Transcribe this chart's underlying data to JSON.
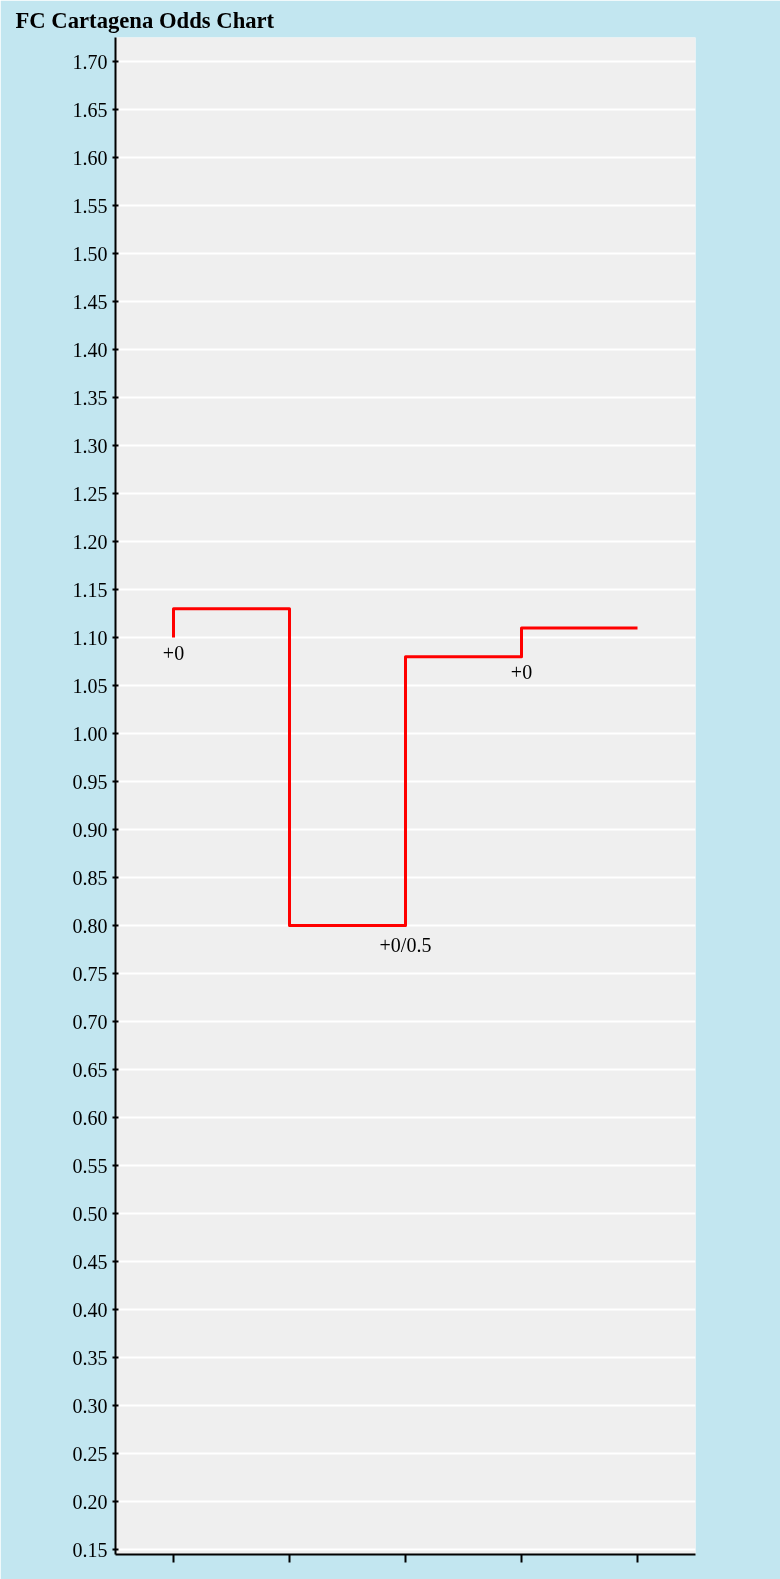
{
  "chart_data": {
    "type": "step",
    "title": "FC Cartagena Odds Chart",
    "categories": [
      null,
      null,
      null,
      null,
      null
    ],
    "series": [
      {
        "color": "#ff0000",
        "values": [
          1.1,
          1.13,
          0.8,
          1.08,
          1.11
        ]
      }
    ],
    "annotations": [
      {
        "text": "+0",
        "y": 1.1
      },
      {
        "text": "+0/0.5",
        "y": 0.8
      },
      {
        "text": "+0",
        "y": 1.08
      }
    ],
    "ylim": [
      0.145,
      1.725
    ],
    "yticks": [
      {
        "value": 0.15,
        "label": "0.15"
      },
      {
        "value": 0.2,
        "label": "0.20"
      },
      {
        "value": 0.25,
        "label": "0.25"
      },
      {
        "value": 0.3,
        "label": "0.30"
      },
      {
        "value": 0.35,
        "label": "0.35"
      },
      {
        "value": 0.4,
        "label": "0.40"
      },
      {
        "value": 0.45,
        "label": "0.45"
      },
      {
        "value": 0.5,
        "label": "0.50"
      },
      {
        "value": 0.55,
        "label": "0.55"
      },
      {
        "value": 0.6,
        "label": "0.60"
      },
      {
        "value": 0.65,
        "label": "0.65"
      },
      {
        "value": 0.7,
        "label": "0.70"
      },
      {
        "value": 0.75,
        "label": "0.75"
      },
      {
        "value": 0.8,
        "label": "0.80"
      },
      {
        "value": 0.85,
        "label": "0.85"
      },
      {
        "value": 0.9,
        "label": "0.90"
      },
      {
        "value": 0.95,
        "label": "0.95"
      },
      {
        "value": 1.0,
        "label": "1.00"
      },
      {
        "value": 1.05,
        "label": "1.05"
      },
      {
        "value": 1.1,
        "label": "1.10"
      },
      {
        "value": 1.15,
        "label": "1.15"
      },
      {
        "value": 1.2,
        "label": "1.20"
      },
      {
        "value": 1.25,
        "label": "1.25"
      },
      {
        "value": 1.3,
        "label": "1.30"
      },
      {
        "value": 1.35,
        "label": "1.35"
      },
      {
        "value": 1.4,
        "label": "1.40"
      },
      {
        "value": 1.45,
        "label": "1.45"
      },
      {
        "value": 1.5,
        "label": "1.50"
      },
      {
        "value": 1.55,
        "label": "1.55"
      },
      {
        "value": 1.6,
        "label": "1.60"
      },
      {
        "value": 1.65,
        "label": "1.65"
      },
      {
        "value": 1.7,
        "label": "1.70"
      }
    ],
    "grid": "y"
  }
}
